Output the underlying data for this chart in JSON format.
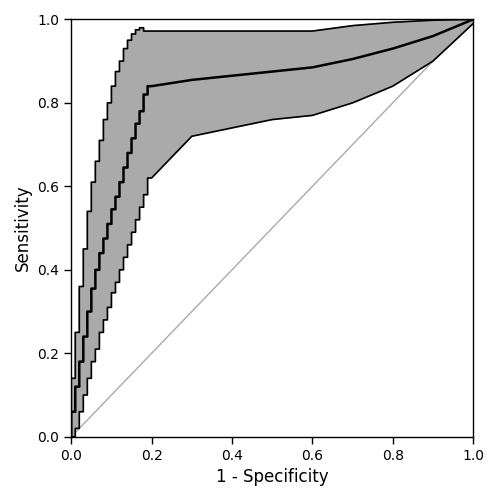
{
  "xlabel": "1 - Specificity",
  "ylabel": "Sensitivity",
  "xlim": [
    0.0,
    1.0
  ],
  "ylim": [
    0.0,
    1.0
  ],
  "xticks": [
    0.0,
    0.2,
    0.4,
    0.6,
    0.8,
    1.0
  ],
  "yticks": [
    0.0,
    0.2,
    0.4,
    0.6,
    0.8,
    1.0
  ],
  "diagonal_color": "#aaaaaa",
  "roc_color": "#000000",
  "band_color": "#aaaaaa",
  "band_alpha": 1.0,
  "roc_linewidth": 1.8,
  "ci_linewidth": 1.2,
  "background_color": "#ffffff",
  "roc_x": [
    0.0,
    0.0,
    0.01,
    0.01,
    0.02,
    0.02,
    0.03,
    0.03,
    0.04,
    0.04,
    0.05,
    0.05,
    0.06,
    0.06,
    0.07,
    0.07,
    0.08,
    0.08,
    0.09,
    0.09,
    0.1,
    0.1,
    0.11,
    0.11,
    0.12,
    0.12,
    0.13,
    0.13,
    0.14,
    0.14,
    0.15,
    0.15,
    0.16,
    0.16,
    0.17,
    0.17,
    0.18,
    0.18,
    0.19,
    0.19,
    0.2,
    0.2,
    0.3,
    0.4,
    0.5,
    0.6,
    0.7,
    0.8,
    0.9,
    1.0
  ],
  "roc_y": [
    0.0,
    0.06,
    0.06,
    0.12,
    0.12,
    0.18,
    0.18,
    0.24,
    0.24,
    0.3,
    0.3,
    0.355,
    0.355,
    0.4,
    0.4,
    0.44,
    0.44,
    0.475,
    0.475,
    0.51,
    0.51,
    0.545,
    0.545,
    0.575,
    0.575,
    0.61,
    0.61,
    0.645,
    0.645,
    0.68,
    0.68,
    0.715,
    0.715,
    0.75,
    0.75,
    0.78,
    0.78,
    0.82,
    0.82,
    0.84,
    0.84,
    0.84,
    0.855,
    0.865,
    0.875,
    0.885,
    0.905,
    0.93,
    0.96,
    1.0
  ],
  "upper_x": [
    0.0,
    0.0,
    0.01,
    0.01,
    0.02,
    0.02,
    0.03,
    0.03,
    0.04,
    0.04,
    0.05,
    0.05,
    0.06,
    0.06,
    0.07,
    0.07,
    0.08,
    0.08,
    0.09,
    0.09,
    0.1,
    0.1,
    0.11,
    0.11,
    0.12,
    0.12,
    0.13,
    0.13,
    0.14,
    0.14,
    0.15,
    0.15,
    0.16,
    0.16,
    0.17,
    0.17,
    0.18,
    0.18,
    0.19,
    0.19,
    0.2,
    0.3,
    0.4,
    0.5,
    0.6,
    0.7,
    0.8,
    0.9,
    1.0
  ],
  "upper_y": [
    0.05,
    0.14,
    0.14,
    0.25,
    0.25,
    0.36,
    0.36,
    0.45,
    0.45,
    0.54,
    0.54,
    0.61,
    0.61,
    0.66,
    0.66,
    0.71,
    0.71,
    0.76,
    0.76,
    0.8,
    0.8,
    0.84,
    0.84,
    0.875,
    0.875,
    0.9,
    0.9,
    0.93,
    0.93,
    0.95,
    0.95,
    0.965,
    0.965,
    0.975,
    0.975,
    0.98,
    0.98,
    0.972,
    0.972,
    0.972,
    0.972,
    0.972,
    0.972,
    0.972,
    0.972,
    0.985,
    0.993,
    0.998,
    1.0
  ],
  "lower_x": [
    0.0,
    0.0,
    0.01,
    0.01,
    0.02,
    0.02,
    0.03,
    0.03,
    0.04,
    0.04,
    0.05,
    0.05,
    0.06,
    0.06,
    0.07,
    0.07,
    0.08,
    0.08,
    0.09,
    0.09,
    0.1,
    0.1,
    0.11,
    0.11,
    0.12,
    0.12,
    0.13,
    0.13,
    0.14,
    0.14,
    0.15,
    0.15,
    0.16,
    0.16,
    0.17,
    0.17,
    0.18,
    0.18,
    0.19,
    0.19,
    0.2,
    0.3,
    0.4,
    0.5,
    0.6,
    0.7,
    0.8,
    0.9,
    1.0
  ],
  "lower_y": [
    0.0,
    0.0,
    0.0,
    0.02,
    0.02,
    0.06,
    0.06,
    0.1,
    0.1,
    0.14,
    0.14,
    0.18,
    0.18,
    0.21,
    0.21,
    0.25,
    0.25,
    0.28,
    0.28,
    0.31,
    0.31,
    0.345,
    0.345,
    0.37,
    0.37,
    0.4,
    0.4,
    0.43,
    0.43,
    0.46,
    0.46,
    0.49,
    0.49,
    0.52,
    0.52,
    0.55,
    0.55,
    0.58,
    0.58,
    0.62,
    0.62,
    0.72,
    0.74,
    0.76,
    0.77,
    0.8,
    0.84,
    0.9,
    0.99
  ]
}
